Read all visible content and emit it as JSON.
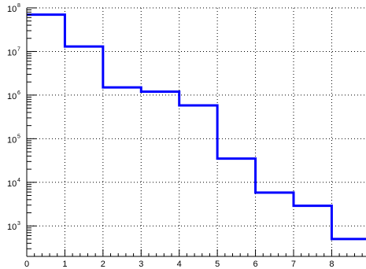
{
  "chart_data": {
    "type": "line",
    "style": "step",
    "grid": true,
    "y_scale": "log",
    "xlim": [
      0,
      8.9
    ],
    "ylim": [
      200,
      100000000
    ],
    "x_ticks": [
      0,
      1,
      2,
      3,
      4,
      5,
      6,
      7,
      8
    ],
    "y_ticks": [
      {
        "value": 1000,
        "base": "10",
        "exp": "3"
      },
      {
        "value": 10000,
        "base": "10",
        "exp": "4"
      },
      {
        "value": 100000,
        "base": "10",
        "exp": "5"
      },
      {
        "value": 1000000,
        "base": "10",
        "exp": "6"
      },
      {
        "value": 10000000,
        "base": "10",
        "exp": "7"
      },
      {
        "value": 100000000,
        "base": "10",
        "exp": "8"
      }
    ],
    "series": [
      {
        "color": "#0000ff",
        "bins": [
          {
            "x0": 0,
            "x1": 1,
            "y": 70000000
          },
          {
            "x0": 1,
            "x1": 2,
            "y": 13000000
          },
          {
            "x0": 2,
            "x1": 3,
            "y": 1500000
          },
          {
            "x0": 3,
            "x1": 4,
            "y": 1200000
          },
          {
            "x0": 4,
            "x1": 5,
            "y": 580000
          },
          {
            "x0": 5,
            "x1": 6,
            "y": 35000
          },
          {
            "x0": 6,
            "x1": 7,
            "y": 5800
          },
          {
            "x0": 7,
            "x1": 8,
            "y": 2900
          },
          {
            "x0": 8,
            "x1": 8.9,
            "y": 500
          }
        ]
      }
    ],
    "title": "",
    "xlabel": "",
    "ylabel": ""
  }
}
